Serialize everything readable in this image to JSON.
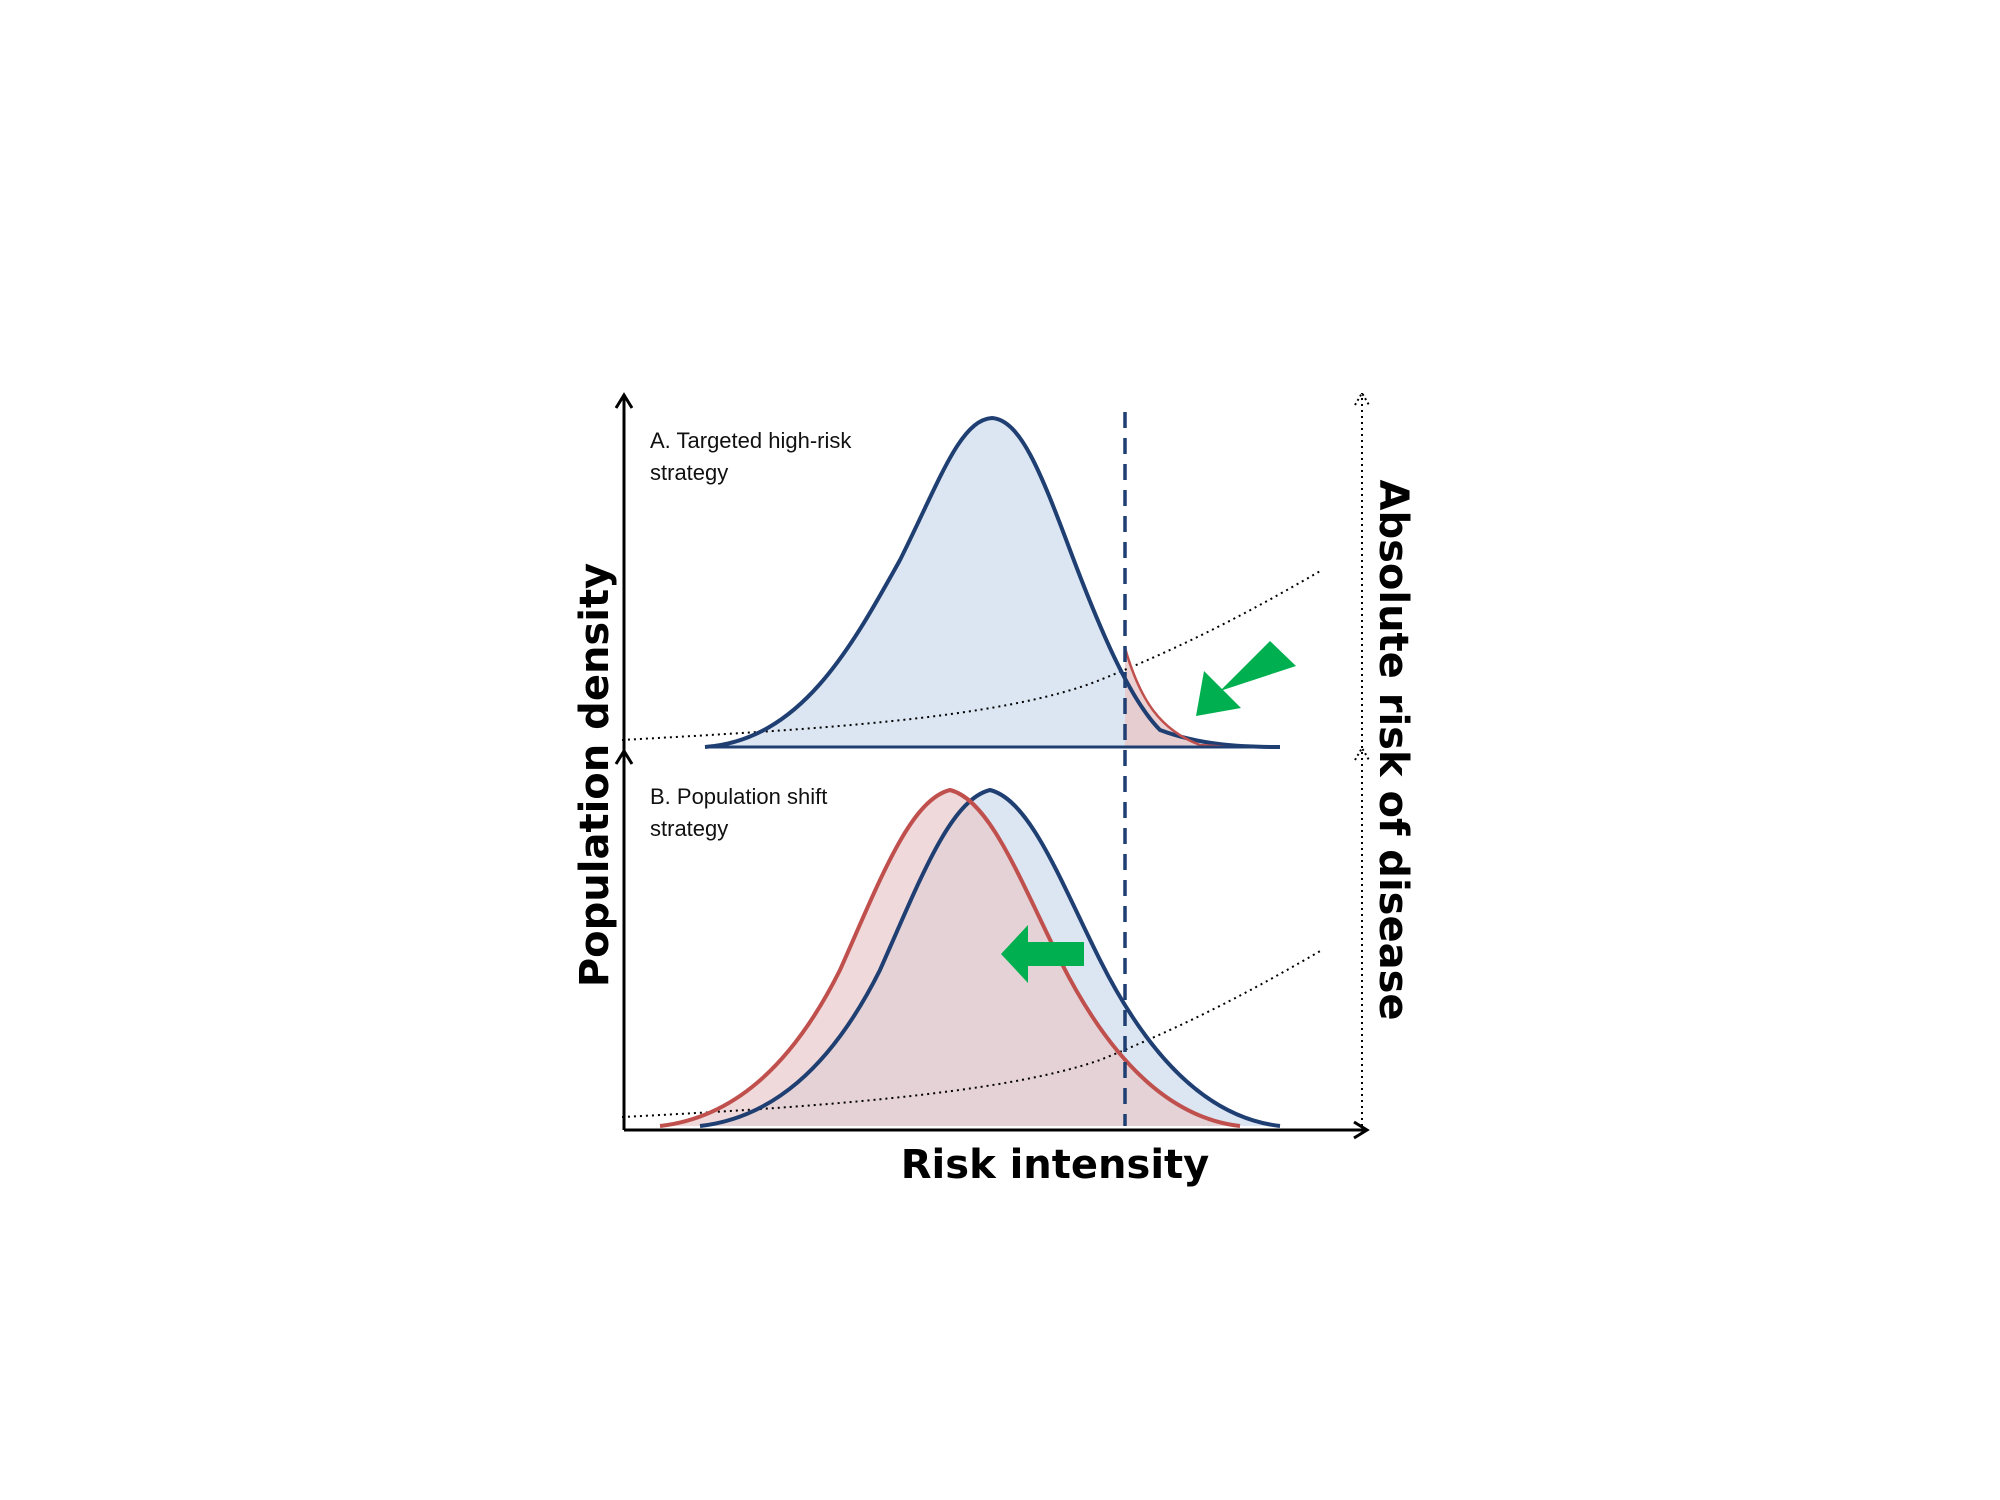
{
  "panel_a": {
    "label_line1": "A. Targeted high-risk",
    "label_line2": "strategy"
  },
  "panel_b": {
    "label_line1": "B. Population shift",
    "label_line2": "strategy"
  },
  "axes": {
    "x_title": "Risk intensity",
    "y_left_title": "Population density",
    "y_right_title": "Absolute risk of disease"
  },
  "colors": {
    "baseline_curve": "#1f3f73",
    "baseline_fill": "#dce6f2",
    "intervention_curve": "#c0504d",
    "intervention_fill": "#f2dcdb",
    "threshold_line": "#1f3f73",
    "arrow": "#00b050",
    "risk_curve": "#000000"
  },
  "icons": {
    "panel_a_arrow": "arrow-down-left-icon",
    "panel_b_arrow": "arrow-left-icon"
  }
}
